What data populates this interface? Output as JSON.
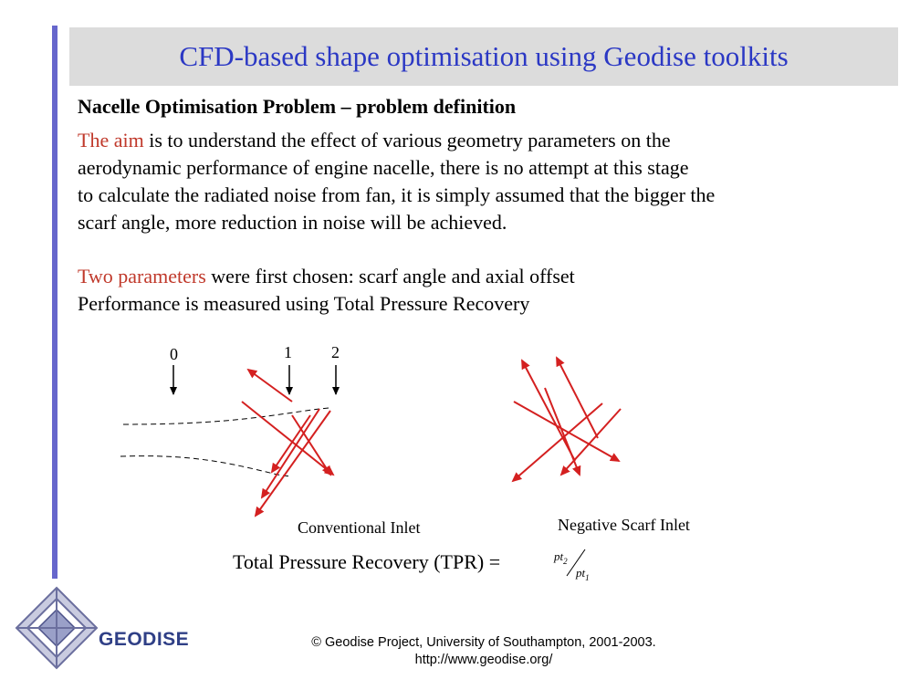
{
  "slide": {
    "title": "CFD-based shape optimisation using Geodise toolkits",
    "heading": "Nacelle Optimisation Problem – problem definition",
    "aim_lines": {
      "highlight": "The aim",
      "line1_rest": " is to understand the effect of various geometry parameters on the",
      "line2": "aerodynamic performance of engine nacelle, there is no attempt at this stage",
      "line3": "to calculate the radiated noise from fan, it is simply assumed that the bigger the",
      "line4": "scarf angle, more reduction in noise will be achieved."
    },
    "params_lines": {
      "highlight": "Two parameters",
      "line1_rest": " were first chosen: scarf angle and axial offset",
      "line2": "Performance is measured using Total Pressure Recovery"
    }
  },
  "diagram": {
    "station_labels": [
      "0",
      "1",
      "2"
    ],
    "conventional_label": "Conventional Inlet",
    "negative_label": "Negative Scarf Inlet",
    "arrow_color": "#d42020"
  },
  "formula": {
    "text": "Total Pressure Recovery (TPR) =",
    "numerator": "pt",
    "numerator_sub": "2",
    "denominator": "pt",
    "denominator_sub": "1"
  },
  "footer": {
    "line1": "© Geodise Project, University of Southampton, 2001-2003.",
    "line2": "http://www.geodise.org/"
  },
  "logo": {
    "text": "GEODISE",
    "icon": "geodise-diamond-logo-icon",
    "color": "#2f3f86"
  }
}
